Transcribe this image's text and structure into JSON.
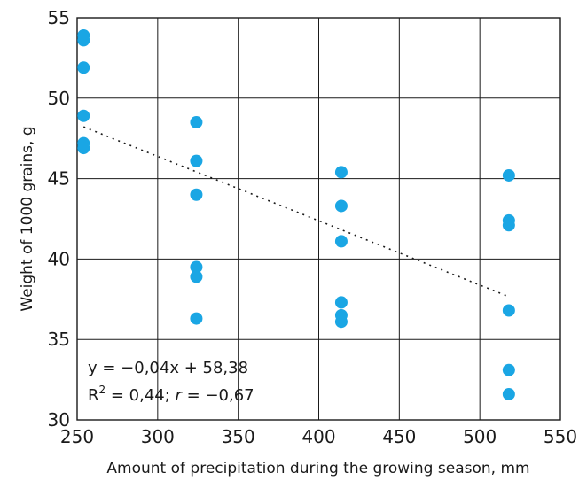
{
  "chart_data": {
    "type": "scatter",
    "title": "",
    "xlabel": "Amount of precipitation during the growing season, mm",
    "ylabel": "Weight of 1000 grains, g",
    "xlim": [
      250,
      550
    ],
    "ylim": [
      30,
      55
    ],
    "xticks": [
      250,
      300,
      350,
      400,
      450,
      500,
      550
    ],
    "yticks": [
      30,
      35,
      40,
      45,
      50,
      55
    ],
    "grid": true,
    "point_color": "#1aa6e4",
    "series": [
      {
        "points": [
          {
            "x": 254,
            "y": 53.9
          },
          {
            "x": 254,
            "y": 53.6
          },
          {
            "x": 254,
            "y": 51.9
          },
          {
            "x": 254,
            "y": 48.9
          },
          {
            "x": 254,
            "y": 47.2
          },
          {
            "x": 254,
            "y": 46.9
          },
          {
            "x": 324,
            "y": 48.5
          },
          {
            "x": 324,
            "y": 46.1
          },
          {
            "x": 324,
            "y": 44.0
          },
          {
            "x": 324,
            "y": 39.5
          },
          {
            "x": 324,
            "y": 38.9
          },
          {
            "x": 324,
            "y": 36.3
          },
          {
            "x": 414,
            "y": 45.4
          },
          {
            "x": 414,
            "y": 43.3
          },
          {
            "x": 414,
            "y": 41.1
          },
          {
            "x": 414,
            "y": 37.3
          },
          {
            "x": 414,
            "y": 36.5
          },
          {
            "x": 414,
            "y": 36.1
          },
          {
            "x": 518,
            "y": 45.2
          },
          {
            "x": 518,
            "y": 42.4
          },
          {
            "x": 518,
            "y": 42.1
          },
          {
            "x": 518,
            "y": 36.8
          },
          {
            "x": 518,
            "y": 33.1
          },
          {
            "x": 518,
            "y": 31.6
          }
        ]
      }
    ],
    "trendline": {
      "x_from": 254,
      "x_to": 518,
      "slope": -0.04,
      "intercept": 58.38,
      "style": "dotted"
    },
    "annotations": {
      "equation": "y = −0,04x + 58,38",
      "r2_label": "R",
      "r2_sup": "2",
      "r2_value": " = 0,44; ",
      "r_label": "r",
      "r_value": " = −0,67"
    }
  }
}
